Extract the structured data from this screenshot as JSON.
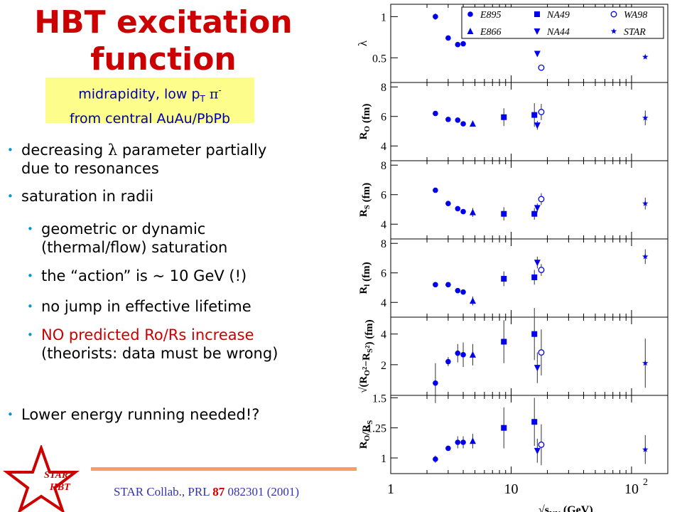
{
  "slide": {
    "title_line1": "HBT excitation",
    "title_line2": "function",
    "note_line1": "midrapidity, low p",
    "note_sub": "T",
    "note_pi": "π",
    "note_sup": "-",
    "note_line2": "from central AuAu/PbPb",
    "bullets": [
      {
        "text_a": "decreasing ",
        "lambda": "λ",
        "text_b": " parameter partially",
        "text_c": "due to resonances"
      },
      {
        "text_a": "saturation in radii"
      },
      {
        "text_a": "geometric or dynamic",
        "text_c": "(thermal/flow) saturation"
      },
      {
        "text_a": "the “action” is ~ 10 GeV (!)"
      },
      {
        "text_a": "no jump in effective lifetime"
      },
      {
        "text_a": "NO predicted Ro/Rs increase",
        "text_c": "(theorists: data must be wrong)"
      },
      {
        "text_a": "Lower energy running needed!?"
      }
    ],
    "logo_line1": "STAR",
    "logo_line2": "HBT",
    "footer_a": "STAR Collab., PRL ",
    "footer_b": "87",
    "footer_c": " 082301 (2001)",
    "accent_red": "#cc0000",
    "marker_blue": "#0000ee",
    "note_bg": "#fdfd8c"
  },
  "chart_data": {
    "type": "scatter",
    "x_scale": "log",
    "xlim": [
      1,
      200
    ],
    "x_ticks": [
      "1",
      "10",
      "10"
    ],
    "x_tick_exp": "2",
    "xlabel": "√s",
    "xlabel_sub": "NN",
    "xlabel_unit": " (GeV)",
    "legend": [
      "E895",
      "NA49",
      "WA98",
      "E866",
      "NA44",
      "STAR"
    ],
    "legend_markers": [
      "circle",
      "square",
      "open-circle",
      "triangle",
      "down-triangle",
      "star"
    ],
    "panels": [
      {
        "ylabel": "λ",
        "ylim": [
          0.2,
          1.15
        ],
        "ticks": [
          "1",
          "0.5"
        ],
        "points": [
          {
            "series": "E895",
            "x": 2.35,
            "y": 1.0,
            "err": 0.04
          },
          {
            "series": "E895",
            "x": 3.0,
            "y": 0.74,
            "err": 0.02
          },
          {
            "series": "E895",
            "x": 3.6,
            "y": 0.66,
            "err": 0.02
          },
          {
            "series": "E895",
            "x": 4.0,
            "y": 0.67,
            "err": 0.02
          },
          {
            "series": "NA44",
            "x": 16.5,
            "y": 0.55,
            "err": 0.02
          },
          {
            "series": "WA98",
            "x": 17.8,
            "y": 0.38,
            "err": 0.02
          },
          {
            "series": "STAR",
            "x": 130,
            "y": 0.51,
            "err": 0.02
          }
        ]
      },
      {
        "ylabel": "R",
        "ylabel_sub": "O",
        "ylabel_unit": " (fm)",
        "ylim": [
          3,
          8.3
        ],
        "ticks": [
          "8",
          "6",
          "4"
        ],
        "points": [
          {
            "series": "E895",
            "x": 2.35,
            "y": 6.2,
            "err": 0.15
          },
          {
            "series": "E895",
            "x": 3.0,
            "y": 5.8,
            "err": 0.12
          },
          {
            "series": "E895",
            "x": 3.6,
            "y": 5.75,
            "err": 0.12
          },
          {
            "series": "E895",
            "x": 4.0,
            "y": 5.5,
            "err": 0.12
          },
          {
            "series": "E866",
            "x": 4.8,
            "y": 5.5,
            "err": 0.15
          },
          {
            "series": "NA49",
            "x": 8.7,
            "y": 5.95,
            "err": 0.6
          },
          {
            "series": "NA49",
            "x": 15.6,
            "y": 6.1,
            "err": 0.8
          },
          {
            "series": "NA44",
            "x": 16.5,
            "y": 5.4,
            "err": 0.3
          },
          {
            "series": "WA98",
            "x": 17.8,
            "y": 6.3,
            "err": 0.55
          },
          {
            "series": "STAR",
            "x": 130,
            "y": 5.9,
            "err": 0.5
          }
        ]
      },
      {
        "ylabel": "R",
        "ylabel_sub": "S",
        "ylabel_unit": " (fm)",
        "ylim": [
          3,
          8.3
        ],
        "ticks": [
          "8",
          "6",
          "4"
        ],
        "points": [
          {
            "series": "E895",
            "x": 2.35,
            "y": 6.3,
            "err": 0.1
          },
          {
            "series": "E895",
            "x": 3.0,
            "y": 5.4,
            "err": 0.1
          },
          {
            "series": "E895",
            "x": 3.6,
            "y": 5.05,
            "err": 0.1
          },
          {
            "series": "E895",
            "x": 4.0,
            "y": 4.85,
            "err": 0.15
          },
          {
            "series": "E866",
            "x": 4.8,
            "y": 4.8,
            "err": 0.3
          },
          {
            "series": "NA49",
            "x": 8.7,
            "y": 4.7,
            "err": 0.45
          },
          {
            "series": "NA49",
            "x": 15.6,
            "y": 4.7,
            "err": 0.4
          },
          {
            "series": "NA44",
            "x": 16.5,
            "y": 5.1,
            "err": 0.3
          },
          {
            "series": "WA98",
            "x": 17.8,
            "y": 5.7,
            "err": 0.4
          },
          {
            "series": "STAR",
            "x": 130,
            "y": 5.4,
            "err": 0.4
          }
        ]
      },
      {
        "ylabel": "R",
        "ylabel_sub": "l",
        "ylabel_unit": " (fm)",
        "ylim": [
          3,
          8.3
        ],
        "ticks": [
          "8",
          "6",
          "4"
        ],
        "points": [
          {
            "series": "E895",
            "x": 2.35,
            "y": 5.2,
            "err": 0.1
          },
          {
            "series": "E895",
            "x": 3.0,
            "y": 5.2,
            "err": 0.1
          },
          {
            "series": "E895",
            "x": 3.6,
            "y": 4.8,
            "err": 0.1
          },
          {
            "series": "E895",
            "x": 4.0,
            "y": 4.7,
            "err": 0.15
          },
          {
            "series": "E866",
            "x": 4.8,
            "y": 4.1,
            "err": 0.3
          },
          {
            "series": "NA49",
            "x": 8.7,
            "y": 5.6,
            "err": 0.5
          },
          {
            "series": "NA49",
            "x": 15.6,
            "y": 5.7,
            "err": 0.5
          },
          {
            "series": "NA44",
            "x": 16.5,
            "y": 6.7,
            "err": 0.4
          },
          {
            "series": "WA98",
            "x": 17.8,
            "y": 6.2,
            "err": 0.4
          },
          {
            "series": "STAR",
            "x": 130,
            "y": 7.1,
            "err": 0.5
          }
        ]
      },
      {
        "ylabel": "√(R",
        "ylabel_sub": "O",
        "ylabel_mid": "²−R",
        "ylabel_sub2": "S",
        "ylabel_unit": "²) (fm)",
        "ylim": [
          0,
          5.1
        ],
        "ticks": [
          "4",
          "2"
        ],
        "points": [
          {
            "series": "E895",
            "x": 2.35,
            "y": 0.8,
            "err": 1.3
          },
          {
            "series": "E895",
            "x": 3.0,
            "y": 2.2,
            "err": 0.3
          },
          {
            "series": "E895",
            "x": 3.6,
            "y": 2.75,
            "err": 0.6
          },
          {
            "series": "E895",
            "x": 4.0,
            "y": 2.65,
            "err": 0.8
          },
          {
            "series": "E866",
            "x": 4.8,
            "y": 2.65,
            "err": 0.7
          },
          {
            "series": "NA49",
            "x": 8.7,
            "y": 3.5,
            "err": 1.4
          },
          {
            "series": "NA49",
            "x": 15.6,
            "y": 4.0,
            "err": 1.7
          },
          {
            "series": "NA44",
            "x": 16.5,
            "y": 1.8,
            "err": 1.0
          },
          {
            "series": "WA98",
            "x": 17.8,
            "y": 2.8,
            "err": 1.5
          },
          {
            "series": "STAR",
            "x": 130,
            "y": 2.1,
            "err": 1.6
          }
        ]
      },
      {
        "ylabel": "R",
        "ylabel_sub": "O",
        "ylabel_mid": "/R",
        "ylabel_sub2": "S",
        "ylim": [
          0.87,
          1.52
        ],
        "ticks": [
          "1.5",
          "1.25",
          "1"
        ],
        "points": [
          {
            "series": "E895",
            "x": 2.35,
            "y": 0.99,
            "err": 0.03
          },
          {
            "series": "E895",
            "x": 3.0,
            "y": 1.08,
            "err": 0.02
          },
          {
            "series": "E895",
            "x": 3.6,
            "y": 1.13,
            "err": 0.05
          },
          {
            "series": "E895",
            "x": 4.0,
            "y": 1.13,
            "err": 0.05
          },
          {
            "series": "E866",
            "x": 4.8,
            "y": 1.14,
            "err": 0.06
          },
          {
            "series": "NA49",
            "x": 8.7,
            "y": 1.25,
            "err": 0.17
          },
          {
            "series": "NA49",
            "x": 15.6,
            "y": 1.3,
            "err": 0.2
          },
          {
            "series": "NA44",
            "x": 16.5,
            "y": 1.06,
            "err": 0.1
          },
          {
            "series": "WA98",
            "x": 17.8,
            "y": 1.11,
            "err": 0.17
          },
          {
            "series": "STAR",
            "x": 130,
            "y": 1.07,
            "err": 0.12
          }
        ]
      }
    ]
  }
}
